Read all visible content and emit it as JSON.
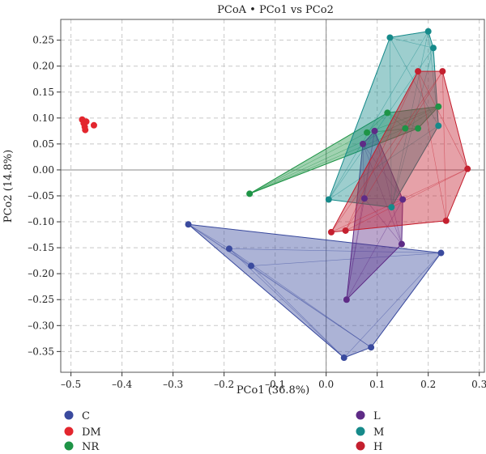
{
  "chart_data": {
    "type": "scatter",
    "title": "PCoA • PCo1 vs PCo2",
    "xlabel": "PCo1 (36.8%)",
    "ylabel": "PCo2 (14.8%)",
    "xlim": [
      -0.52,
      0.31
    ],
    "ylim": [
      -0.39,
      0.29
    ],
    "x_ticks": [
      -0.5,
      -0.4,
      -0.3,
      -0.2,
      -0.1,
      0.0,
      0.1,
      0.2,
      0.3
    ],
    "x_tick_labels": [
      "–0.5",
      "–0.4",
      "–0.3",
      "–0.2",
      "–0.1",
      "0.0",
      "0.1",
      "0.2",
      "0.3"
    ],
    "y_ticks": [
      0.25,
      0.2,
      0.15,
      0.1,
      0.05,
      0.0,
      -0.05,
      -0.1,
      -0.15,
      -0.2,
      -0.25,
      -0.3,
      -0.35
    ],
    "y_tick_labels": [
      "0.25",
      "0.20",
      "0.15",
      "0.10",
      "0.05",
      "0.00",
      "–0.05",
      "–0.10",
      "–0.15",
      "–0.20",
      "–0.25",
      "–0.30",
      "–0.35"
    ],
    "grid": true,
    "zero_lines": true,
    "legend_position": "bottom",
    "series": [
      {
        "name": "C",
        "color": "#3a4a9e",
        "points": [
          [
            -0.27,
            -0.105
          ],
          [
            -0.19,
            -0.152
          ],
          [
            -0.147,
            -0.185
          ],
          [
            0.035,
            -0.362
          ],
          [
            0.088,
            -0.342
          ],
          [
            0.225,
            -0.16
          ]
        ],
        "hull": [
          [
            -0.27,
            -0.105
          ],
          [
            0.225,
            -0.16
          ],
          [
            0.088,
            -0.342
          ],
          [
            0.035,
            -0.362
          ]
        ]
      },
      {
        "name": "DM",
        "color": "#e3262e",
        "points": [
          [
            -0.478,
            0.097
          ],
          [
            -0.475,
            0.09
          ],
          [
            -0.473,
            0.083
          ],
          [
            -0.472,
            0.077
          ],
          [
            -0.47,
            0.093
          ],
          [
            -0.455,
            0.086
          ]
        ],
        "hull": []
      },
      {
        "name": "NR",
        "color": "#1e9446",
        "points": [
          [
            -0.15,
            -0.046
          ],
          [
            0.08,
            0.072
          ],
          [
            0.12,
            0.11
          ],
          [
            0.155,
            0.08
          ],
          [
            0.18,
            0.08
          ],
          [
            0.22,
            0.122
          ]
        ],
        "hull": [
          [
            -0.15,
            -0.046
          ],
          [
            0.12,
            0.11
          ],
          [
            0.22,
            0.122
          ],
          [
            0.18,
            0.08
          ]
        ]
      },
      {
        "name": "L",
        "color": "#5e2b86",
        "points": [
          [
            0.072,
            0.05
          ],
          [
            0.095,
            0.075
          ],
          [
            0.075,
            -0.055
          ],
          [
            0.15,
            -0.057
          ],
          [
            0.148,
            -0.143
          ],
          [
            0.04,
            -0.25
          ]
        ],
        "hull": [
          [
            0.072,
            0.05
          ],
          [
            0.095,
            0.075
          ],
          [
            0.15,
            -0.057
          ],
          [
            0.148,
            -0.143
          ],
          [
            0.04,
            -0.25
          ]
        ]
      },
      {
        "name": "M",
        "color": "#168a8a",
        "points": [
          [
            0.125,
            0.255
          ],
          [
            0.2,
            0.267
          ],
          [
            0.21,
            0.235
          ],
          [
            0.22,
            0.085
          ],
          [
            0.005,
            -0.057
          ],
          [
            0.128,
            -0.072
          ]
        ],
        "hull": [
          [
            0.125,
            0.255
          ],
          [
            0.2,
            0.267
          ],
          [
            0.21,
            0.235
          ],
          [
            0.22,
            0.085
          ],
          [
            0.128,
            -0.072
          ],
          [
            0.005,
            -0.057
          ]
        ]
      },
      {
        "name": "H",
        "color": "#c4202f",
        "points": [
          [
            0.18,
            0.19
          ],
          [
            0.228,
            0.19
          ],
          [
            0.277,
            0.002
          ],
          [
            0.235,
            -0.098
          ],
          [
            0.01,
            -0.12
          ],
          [
            0.038,
            -0.117
          ]
        ],
        "hull": [
          [
            0.18,
            0.19
          ],
          [
            0.228,
            0.19
          ],
          [
            0.277,
            0.002
          ],
          [
            0.235,
            -0.098
          ],
          [
            0.01,
            -0.12
          ]
        ]
      }
    ]
  }
}
